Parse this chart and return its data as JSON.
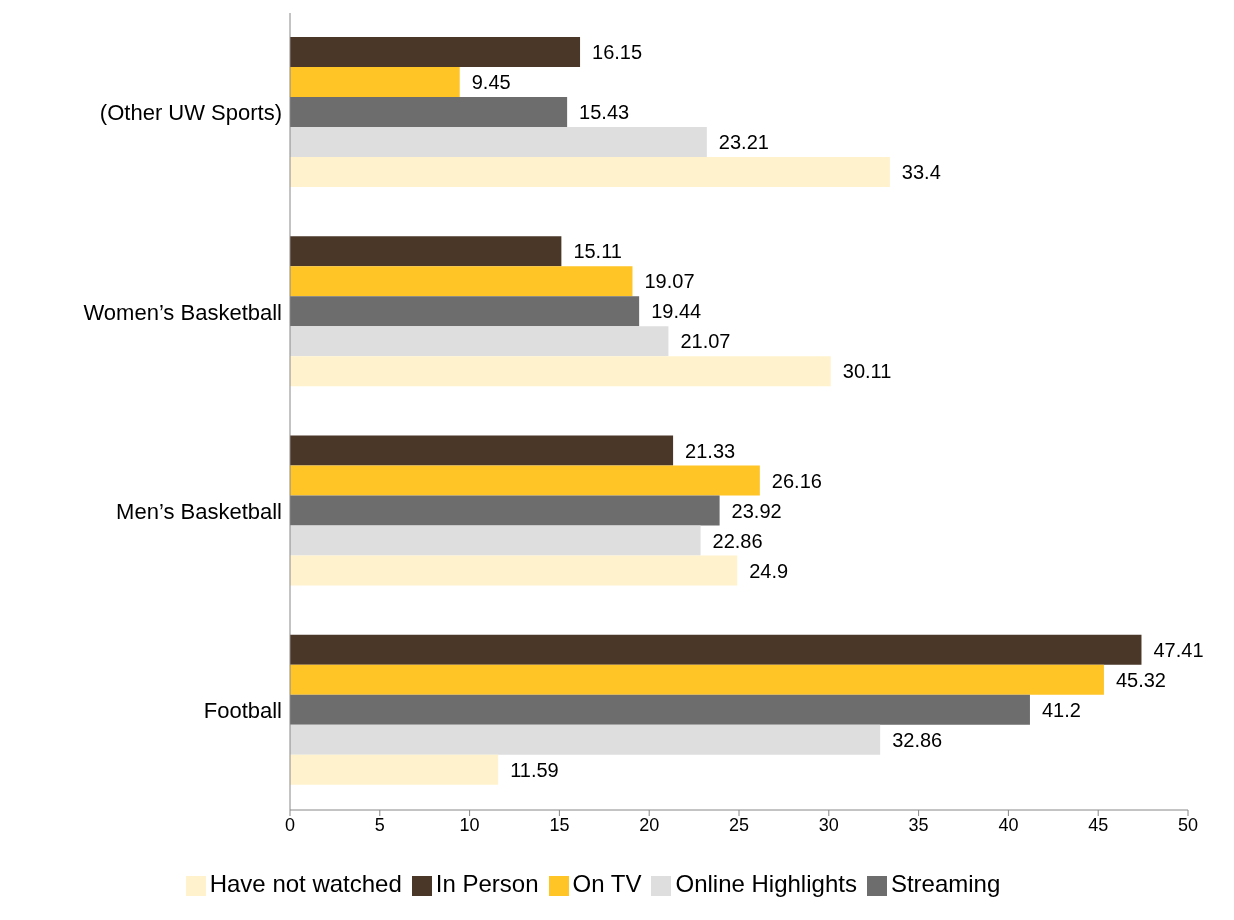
{
  "chart_data": {
    "type": "bar",
    "orientation": "horizontal",
    "categories": [
      "(Other UW Sports)",
      "Women’s Basketball",
      "Men’s Basketball",
      "Football"
    ],
    "series": [
      {
        "name": "In Person",
        "color": "#4a3728",
        "values": [
          16.15,
          15.11,
          21.33,
          47.41
        ]
      },
      {
        "name": "On TV",
        "color": "#ffc425",
        "values": [
          9.45,
          19.07,
          26.16,
          45.32
        ]
      },
      {
        "name": "Streaming",
        "color": "#6d6d6d",
        "values": [
          15.43,
          19.44,
          23.92,
          41.2
        ]
      },
      {
        "name": "Online Highlights",
        "color": "#dedede",
        "values": [
          23.21,
          21.07,
          22.86,
          32.86
        ]
      },
      {
        "name": "Have not watched",
        "color": "#fff2cc",
        "values": [
          33.4,
          30.11,
          24.9,
          11.59
        ]
      }
    ],
    "xlim": [
      0,
      50
    ],
    "xticks": [
      0,
      5,
      10,
      15,
      20,
      25,
      30,
      35,
      40,
      45,
      50
    ],
    "grid": false,
    "legend": "bottom",
    "data_labels": true
  }
}
